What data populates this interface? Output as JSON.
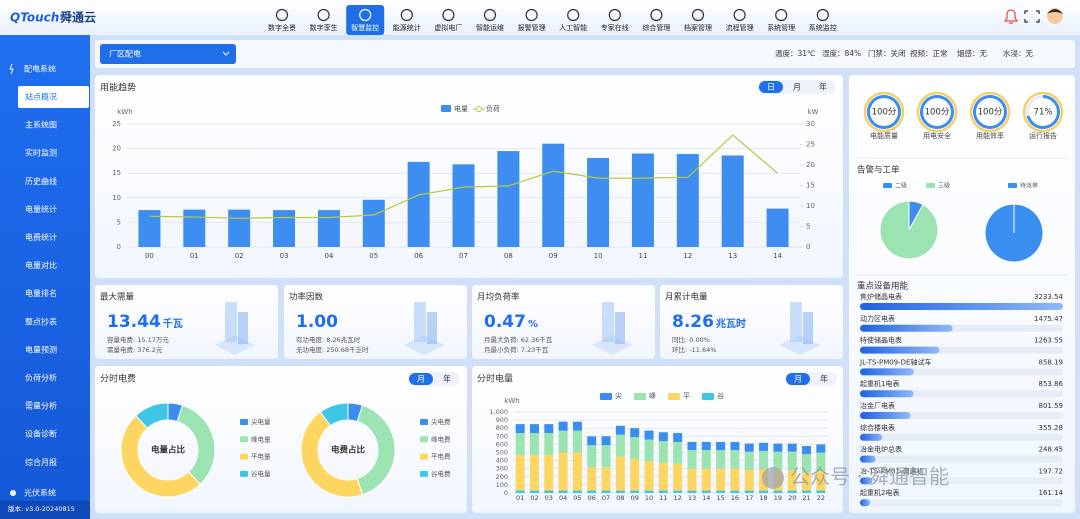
{
  "header": {
    "logo": "QTouch",
    "brand": "舜通云",
    "nav": [
      "数字全景",
      "数字孪生",
      "智慧监控",
      "能源统计",
      "虚拟电厂",
      "智能运维",
      "报警管理",
      "人工智能",
      "专家在线",
      "综合管理",
      "档案管理",
      "流程管理",
      "系统管理",
      "系统监控"
    ]
  },
  "sidebar": {
    "section": "配电系统",
    "items": [
      "站点概况",
      "主系统图",
      "实时监测",
      "历史曲线",
      "电量统计",
      "电费统计",
      "电量对比",
      "电量排名",
      "整点抄表",
      "电量预测",
      "负荷分析",
      "需量分析",
      "设备诊断",
      "综合月报"
    ],
    "footer_section": "光伏系统",
    "version": "版本: v3.0-20240815"
  },
  "toolbar": {
    "site": "厂区配电",
    "status": [
      "温度：31℃",
      "湿度：84%",
      "门禁：关闭",
      "视频：正常",
      "烟感：无",
      "水浸：无"
    ]
  },
  "trend": {
    "type": "bar",
    "title": "用能趋势",
    "tabs": [
      "日",
      "月",
      "年"
    ],
    "y_label": "kWh",
    "y2_label": "kW",
    "categories": [
      "00",
      "01",
      "02",
      "03",
      "04",
      "05",
      "06",
      "07",
      "08",
      "09",
      "10",
      "11",
      "12",
      "13",
      "14"
    ],
    "series": [
      {
        "name": "电量",
        "color": "#3d8ef0",
        "values": [
          7.5,
          7.6,
          7.6,
          7.5,
          7.5,
          9.6,
          17.3,
          16.8,
          19.5,
          21,
          18.1,
          19,
          18.9,
          18.6,
          7.8
        ]
      },
      {
        "name": "负荷",
        "color": "#b8c93a",
        "type": "line",
        "axis": "y2",
        "values": [
          7.5,
          7.3,
          7,
          7.2,
          7.2,
          7.8,
          12.7,
          14.6,
          14.9,
          18.5,
          16.8,
          16.8,
          17,
          27.3,
          18
        ]
      }
    ],
    "ylim": [
      0,
      25
    ],
    "yticks": [
      0,
      5,
      10,
      15,
      20,
      25
    ],
    "y2lim": [
      0,
      30
    ],
    "y2ticks": [
      0,
      5,
      10,
      15,
      20,
      25,
      30
    ],
    "grid": true
  },
  "kpis": [
    {
      "title": "最大需量",
      "value": "13.44",
      "unit": "千瓦",
      "lines": [
        "容量电费: 15.17万元",
        "需量电费: 376.2元"
      ]
    },
    {
      "title": "功率因数",
      "value": "1.00",
      "unit": "",
      "lines": [
        "有功电度: 8.26兆瓦时",
        "无功电度: 250.68千乏时"
      ]
    },
    {
      "title": "月均负荷率",
      "value": "0.47",
      "unit": "%",
      "lines": [
        "月最大负荷: 62.36千瓦",
        "月最小负荷: 7.23千瓦"
      ]
    },
    {
      "title": "月累计电量",
      "value": "8.26",
      "unit": "兆瓦时",
      "lines": [
        "同比: 0.00%",
        "环比: -11.64%"
      ]
    }
  ],
  "tou_cost": {
    "title": "分时电费",
    "tabs": [
      "月",
      "年"
    ],
    "charts": [
      {
        "type": "pie",
        "center_label": "电量占比",
        "categories": [
          "尖电量",
          "峰电量",
          "平电量",
          "谷电量"
        ],
        "values": [
          5,
          33,
          50,
          12
        ],
        "colors": [
          "#3a8ef0",
          "#9be3b1",
          "#fdd662",
          "#3fc6e6"
        ]
      },
      {
        "type": "pie",
        "center_label": "电费占比",
        "categories": [
          "尖电费",
          "峰电费",
          "平电费",
          "谷电费"
        ],
        "values": [
          5,
          40,
          45,
          10
        ],
        "colors": [
          "#3a8ef0",
          "#9be3b1",
          "#fdd662",
          "#3fc6e6"
        ]
      }
    ]
  },
  "tou_energy": {
    "type": "bar",
    "stacked": true,
    "title": "分时电量",
    "tabs": [
      "月",
      "年"
    ],
    "y_label": "kWh",
    "categories": [
      "01",
      "02",
      "03",
      "04",
      "05",
      "06",
      "07",
      "08",
      "09",
      "10",
      "11",
      "12",
      "13",
      "14",
      "15",
      "16",
      "17",
      "18",
      "19",
      "20",
      "21",
      "22"
    ],
    "series": [
      {
        "name": "尖",
        "color": "#3a8ef0",
        "values": [
          110,
          110,
          110,
          110,
          110,
          110,
          110,
          110,
          110,
          110,
          110,
          110,
          100,
          100,
          100,
          100,
          100,
          100,
          100,
          100,
          100,
          100
        ]
      },
      {
        "name": "峰",
        "color": "#9be3b1",
        "values": [
          270,
          270,
          270,
          270,
          270,
          270,
          270,
          270,
          270,
          270,
          270,
          270,
          230,
          230,
          230,
          230,
          230,
          230,
          230,
          230,
          230,
          230
        ]
      },
      {
        "name": "平",
        "color": "#fdd662",
        "values": [
          440,
          440,
          440,
          470,
          470,
          290,
          290,
          420,
          390,
          360,
          340,
          330,
          270,
          270,
          270,
          270,
          250,
          260,
          250,
          250,
          220,
          240
        ]
      },
      {
        "name": "谷",
        "color": "#3fc6e6",
        "values": [
          30,
          30,
          30,
          30,
          30,
          30,
          30,
          30,
          30,
          30,
          30,
          30,
          30,
          30,
          30,
          30,
          30,
          30,
          30,
          30,
          30,
          30
        ]
      }
    ],
    "ylim": [
      0,
      1000
    ],
    "yticks": [
      0,
      100,
      200,
      300,
      400,
      500,
      600,
      700,
      800,
      900,
      {
        "value": 1000,
        "label": "1,000"
      }
    ],
    "grid": true
  },
  "right": {
    "scores": [
      {
        "name": "电能质量",
        "label": "100分",
        "value": 100
      },
      {
        "name": "用电安全",
        "label": "100分",
        "value": 100
      },
      {
        "name": "用能效率",
        "label": "100分",
        "value": 100
      },
      {
        "name": "运行报告",
        "label": "71%",
        "value": 71
      }
    ],
    "alarm": {
      "title": "告警与工单",
      "charts": [
        {
          "type": "pie",
          "categories": [
            "二级",
            "三级"
          ],
          "values": [
            8,
            92
          ],
          "colors": [
            "#3a8ef0",
            "#9be3b1"
          ]
        },
        {
          "type": "pie",
          "categories": [
            "待派单"
          ],
          "values": [
            100
          ],
          "colors": [
            "#3a8ef0"
          ]
        }
      ]
    },
    "devices": {
      "title": "重点设备用能",
      "items": [
        {
          "name": "焦炉储晶电表",
          "value": 3233.54
        },
        {
          "name": "动力区电表",
          "value": 1475.47
        },
        {
          "name": "特使储晶电表",
          "value": 1263.55
        },
        {
          "name": "JL-TS-PM09-DE轴试车",
          "value": 858.19
        },
        {
          "name": "起重机1电表",
          "value": 853.86
        },
        {
          "name": "冶金厂电表",
          "value": 801.59
        },
        {
          "name": "综合楼电表",
          "value": 355.28
        },
        {
          "name": "冶金电炉总表",
          "value": 248.45
        },
        {
          "name": "冶-TS-PM01-调速机",
          "value": 197.72
        },
        {
          "name": "起重机2电表",
          "value": 161.14
        }
      ]
    }
  },
  "watermark": "公众号 · 舜通智能"
}
